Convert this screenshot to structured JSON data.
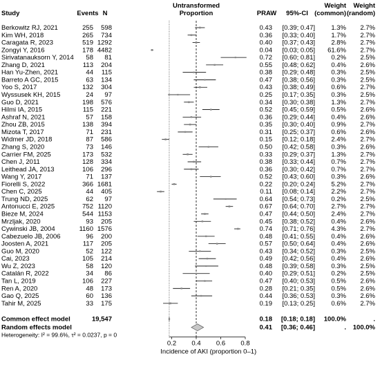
{
  "chart_data": {
    "type": "forest",
    "headers": {
      "study": "Study",
      "events": "Events",
      "n": "N",
      "plot_title_line1": "Untransformed",
      "plot_title_line2": "Proportion",
      "praw": "PRAW",
      "ci": "95%-CI",
      "weight_common_line1": "Weight",
      "weight_common_line2": "(common)",
      "weight_random_line1": "Weight",
      "weight_random_line2": "(random)"
    },
    "xlabel": "Incidence of AKI (proportion 0–1)",
    "xlim": [
      0.0,
      0.8
    ],
    "xticks": [
      0.2,
      0.4,
      0.6,
      0.8
    ],
    "xtick_labels": [
      "0.2",
      "0.4",
      "0.6",
      "0.8"
    ],
    "reference_line": 0.4,
    "studies": [
      {
        "study": "Berkowitz RJ, 2021",
        "events": "255",
        "n": "598",
        "p": 0.43,
        "lo": 0.39,
        "hi": 0.47,
        "ci": "[0.39; 0.47]",
        "p_label": "0.43",
        "wc": "1.3%",
        "wr": "2.7%"
      },
      {
        "study": "Kim WH, 2018",
        "events": "265",
        "n": "734",
        "p": 0.36,
        "lo": 0.33,
        "hi": 0.4,
        "ci": "[0.33; 0.40]",
        "p_label": "0.36",
        "wc": "1.7%",
        "wr": "2.7%"
      },
      {
        "study": "Caragata R, 2023",
        "events": "519",
        "n": "1292",
        "p": 0.4,
        "lo": 0.37,
        "hi": 0.43,
        "ci": "[0.37; 0.43]",
        "p_label": "0.40",
        "wc": "2.8%",
        "wr": "2.7%"
      },
      {
        "study": "Zongyi Y, 2016",
        "events": "178",
        "n": "4482",
        "p": 0.04,
        "lo": 0.03,
        "hi": 0.05,
        "ci": "[0.03; 0.05]",
        "p_label": "0.04",
        "wc": "61.6%",
        "wr": "2.7%"
      },
      {
        "study": "Sirivatanauksorn Y, 2014",
        "events": "58",
        "n": "81",
        "p": 0.72,
        "lo": 0.6,
        "hi": 0.81,
        "ci": "[0.60; 0.81]",
        "p_label": "0.72",
        "wc": "0.2%",
        "wr": "2.5%"
      },
      {
        "study": "Zhang D, 2021",
        "events": "113",
        "n": "204",
        "p": 0.55,
        "lo": 0.48,
        "hi": 0.62,
        "ci": "[0.48; 0.62]",
        "p_label": "0.55",
        "wc": "0.4%",
        "wr": "2.6%"
      },
      {
        "study": "Han Yu-Zhen, 2021",
        "events": "44",
        "n": "115",
        "p": 0.38,
        "lo": 0.29,
        "hi": 0.48,
        "ci": "[0.29; 0.48]",
        "p_label": "0.38",
        "wc": "0.3%",
        "wr": "2.5%"
      },
      {
        "study": "Barreto A GC, 2015",
        "events": "63",
        "n": "134",
        "p": 0.47,
        "lo": 0.38,
        "hi": 0.56,
        "ci": "[0.38; 0.56]",
        "p_label": "0.47",
        "wc": "0.3%",
        "wr": "2.5%"
      },
      {
        "study": "Yoo S, 2017",
        "events": "132",
        "n": "304",
        "p": 0.43,
        "lo": 0.38,
        "hi": 0.49,
        "ci": "[0.38; 0.49]",
        "p_label": "0.43",
        "wc": "0.6%",
        "wr": "2.7%"
      },
      {
        "study": "Wyssusek KH, 2015",
        "events": "24",
        "n": "97",
        "p": 0.25,
        "lo": 0.17,
        "hi": 0.35,
        "ci": "[0.17; 0.35]",
        "p_label": "0.25",
        "wc": "0.3%",
        "wr": "2.5%"
      },
      {
        "study": "Guo D, 2021",
        "events": "198",
        "n": "576",
        "p": 0.34,
        "lo": 0.3,
        "hi": 0.38,
        "ci": "[0.30; 0.38]",
        "p_label": "0.34",
        "wc": "1.3%",
        "wr": "2.7%"
      },
      {
        "study": "Hilmi IA, 2015",
        "events": "115",
        "n": "221",
        "p": 0.52,
        "lo": 0.45,
        "hi": 0.59,
        "ci": "[0.45; 0.59]",
        "p_label": "0.52",
        "wc": "0.5%",
        "wr": "2.6%"
      },
      {
        "study": "Ashraf N, 2021",
        "events": "57",
        "n": "158",
        "p": 0.36,
        "lo": 0.29,
        "hi": 0.44,
        "ci": "[0.29; 0.44]",
        "p_label": "0.36",
        "wc": "0.4%",
        "wr": "2.6%"
      },
      {
        "study": "Zhou ZB, 2015",
        "events": "138",
        "n": "394",
        "p": 0.35,
        "lo": 0.3,
        "hi": 0.4,
        "ci": "[0.30; 0.40]",
        "p_label": "0.35",
        "wc": "0.9%",
        "wr": "2.7%"
      },
      {
        "study": "Mizota T, 2017",
        "events": "71",
        "n": "231",
        "p": 0.31,
        "lo": 0.25,
        "hi": 0.37,
        "ci": "[0.25; 0.37]",
        "p_label": "0.31",
        "wc": "0.6%",
        "wr": "2.6%"
      },
      {
        "study": "Widmer JD, 2018",
        "events": "87",
        "n": "586",
        "p": 0.15,
        "lo": 0.12,
        "hi": 0.18,
        "ci": "[0.12; 0.18]",
        "p_label": "0.15",
        "wc": "2.4%",
        "wr": "2.7%"
      },
      {
        "study": "Zhang S, 2020",
        "events": "73",
        "n": "146",
        "p": 0.5,
        "lo": 0.42,
        "hi": 0.58,
        "ci": "[0.42; 0.58]",
        "p_label": "0.50",
        "wc": "0.3%",
        "wr": "2.6%"
      },
      {
        "study": "Carrier FM, 2025",
        "events": "173",
        "n": "532",
        "p": 0.33,
        "lo": 0.29,
        "hi": 0.37,
        "ci": "[0.29; 0.37]",
        "p_label": "0.33",
        "wc": "1.3%",
        "wr": "2.7%"
      },
      {
        "study": "Chen J, 2011",
        "events": "128",
        "n": "334",
        "p": 0.38,
        "lo": 0.33,
        "hi": 0.44,
        "ci": "[0.33; 0.44]",
        "p_label": "0.38",
        "wc": "0.7%",
        "wr": "2.7%"
      },
      {
        "study": "Leithead JA, 2013",
        "events": "106",
        "n": "296",
        "p": 0.36,
        "lo": 0.3,
        "hi": 0.42,
        "ci": "[0.30; 0.42]",
        "p_label": "0.36",
        "wc": "0.7%",
        "wr": "2.7%"
      },
      {
        "study": "Wang Y, 2017",
        "events": "71",
        "n": "137",
        "p": 0.52,
        "lo": 0.43,
        "hi": 0.6,
        "ci": "[0.43; 0.60]",
        "p_label": "0.52",
        "wc": "0.3%",
        "wr": "2.6%"
      },
      {
        "study": "Fiorelli S, 2022",
        "events": "366",
        "n": "1681",
        "p": 0.22,
        "lo": 0.2,
        "hi": 0.24,
        "ci": "[0.20; 0.24]",
        "p_label": "0.22",
        "wc": "5.2%",
        "wr": "2.7%"
      },
      {
        "study": "Chen C, 2025",
        "events": "44",
        "n": "405",
        "p": 0.11,
        "lo": 0.08,
        "hi": 0.14,
        "ci": "[0.08; 0.14]",
        "p_label": "0.11",
        "wc": "2.2%",
        "wr": "2.7%"
      },
      {
        "study": "Trung ND, 2025",
        "events": "62",
        "n": "97",
        "p": 0.64,
        "lo": 0.54,
        "hi": 0.73,
        "ci": "[0.54; 0.73]",
        "p_label": "0.64",
        "wc": "0.2%",
        "wr": "2.5%"
      },
      {
        "study": "Antonucci E, 2025",
        "events": "752",
        "n": "1120",
        "p": 0.67,
        "lo": 0.64,
        "hi": 0.7,
        "ci": "[0.64; 0.70]",
        "p_label": "0.67",
        "wc": "2.7%",
        "wr": "2.7%"
      },
      {
        "study": "Bieze M, 2024",
        "events": "544",
        "n": "1153",
        "p": 0.47,
        "lo": 0.44,
        "hi": 0.5,
        "ci": "[0.44; 0.50]",
        "p_label": "0.47",
        "wc": "2.4%",
        "wr": "2.7%"
      },
      {
        "study": "Mrzljak, 2020",
        "events": "93",
        "n": "205",
        "p": 0.45,
        "lo": 0.38,
        "hi": 0.52,
        "ci": "[0.38; 0.52]",
        "p_label": "0.45",
        "wc": "0.4%",
        "wr": "2.6%"
      },
      {
        "study": "Cywinski JB, 2004",
        "events": "1160",
        "n": "1576",
        "p": 0.74,
        "lo": 0.71,
        "hi": 0.76,
        "ci": "[0.71; 0.76]",
        "p_label": "0.74",
        "wc": "4.3%",
        "wr": "2.7%"
      },
      {
        "study": "Cabezuelo JB, 2006",
        "events": "96",
        "n": "200",
        "p": 0.48,
        "lo": 0.41,
        "hi": 0.55,
        "ci": "[0.41; 0.55]",
        "p_label": "0.48",
        "wc": "0.4%",
        "wr": "2.6%"
      },
      {
        "study": "Joosten A, 2021",
        "events": "117",
        "n": "205",
        "p": 0.57,
        "lo": 0.5,
        "hi": 0.64,
        "ci": "[0.50; 0.64]",
        "p_label": "0.57",
        "wc": "0.4%",
        "wr": "2.6%"
      },
      {
        "study": "Guo M, 2020",
        "events": "52",
        "n": "122",
        "p": 0.43,
        "lo": 0.34,
        "hi": 0.52,
        "ci": "[0.34; 0.52]",
        "p_label": "0.43",
        "wc": "0.3%",
        "wr": "2.5%"
      },
      {
        "study": "Cai, 2023",
        "events": "105",
        "n": "214",
        "p": 0.49,
        "lo": 0.42,
        "hi": 0.56,
        "ci": "[0.42; 0.56]",
        "p_label": "0.49",
        "wc": "0.4%",
        "wr": "2.6%"
      },
      {
        "study": "Wu Z, 2023",
        "events": "58",
        "n": "120",
        "p": 0.48,
        "lo": 0.39,
        "hi": 0.58,
        "ci": "[0.39; 0.58]",
        "p_label": "0.48",
        "wc": "0.3%",
        "wr": "2.5%"
      },
      {
        "study": "Catalán R, 2022",
        "events": "34",
        "n": "86",
        "p": 0.4,
        "lo": 0.29,
        "hi": 0.51,
        "ci": "[0.29; 0.51]",
        "p_label": "0.40",
        "wc": "0.2%",
        "wr": "2.5%"
      },
      {
        "study": "Tan L, 2019",
        "events": "106",
        "n": "227",
        "p": 0.47,
        "lo": 0.4,
        "hi": 0.53,
        "ci": "[0.40; 0.53]",
        "p_label": "0.47",
        "wc": "0.5%",
        "wr": "2.6%"
      },
      {
        "study": "Ren A, 2020",
        "events": "48",
        "n": "173",
        "p": 0.28,
        "lo": 0.21,
        "hi": 0.35,
        "ci": "[0.21; 0.35]",
        "p_label": "0.28",
        "wc": "0.5%",
        "wr": "2.6%"
      },
      {
        "study": "Gao Q, 2025",
        "events": "60",
        "n": "136",
        "p": 0.44,
        "lo": 0.36,
        "hi": 0.53,
        "ci": "[0.36; 0.53]",
        "p_label": "0.44",
        "wc": "0.3%",
        "wr": "2.6%"
      },
      {
        "study": "Tahir M, 2025",
        "events": "33",
        "n": "175",
        "p": 0.19,
        "lo": 0.13,
        "hi": 0.25,
        "ci": "[0.13; 0.25]",
        "p_label": "0.19",
        "wc": "0.6%",
        "wr": "2.7%"
      }
    ],
    "common_model": {
      "label": "Common effect model",
      "n": "19,547",
      "p": 0.18,
      "lo": 0.18,
      "hi": 0.18,
      "p_label": "0.18",
      "ci": "[0.18; 0.18]",
      "wc": "100.0%",
      "wr": "."
    },
    "random_model": {
      "label": "Random effects model",
      "p": 0.41,
      "lo": 0.36,
      "hi": 0.46,
      "p_label": "0.41",
      "ci": "[0.36; 0.46]",
      "wc": ".",
      "wr": "100.0%"
    },
    "heterogeneity": "Heterogeneity: I² = 99.6%, τ² = 0.0237, p = 0",
    "colors": {
      "square": "#888888",
      "diamond": "#c8c8c8",
      "line": "#000000",
      "refline": "#000000"
    }
  }
}
